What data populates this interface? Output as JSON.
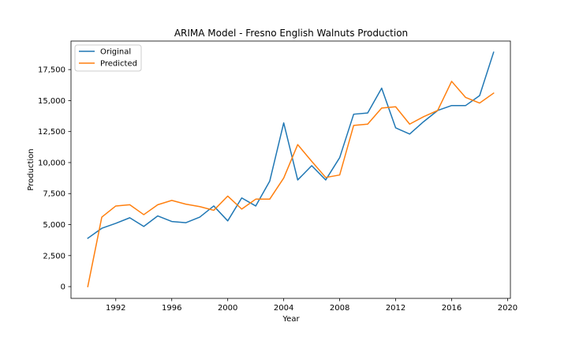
{
  "chart_data": {
    "type": "line",
    "title": "ARIMA Model - Fresno English Walnuts Production",
    "xlabel": "Year",
    "ylabel": "Production",
    "xlim": [
      1988.8,
      2020.2
    ],
    "ylim": [
      -950,
      19800
    ],
    "x_ticks": [
      1992,
      1996,
      2000,
      2004,
      2008,
      2012,
      2016,
      2020
    ],
    "x_tick_labels": [
      "1992",
      "1996",
      "2000",
      "2004",
      "2008",
      "2012",
      "2016",
      "2020"
    ],
    "y_ticks": [
      0,
      2500,
      5000,
      7500,
      10000,
      12500,
      15000,
      17500
    ],
    "y_tick_labels": [
      "0",
      "2,500",
      "5,000",
      "7,500",
      "10,000",
      "12,500",
      "15,000",
      "17,500"
    ],
    "grid": false,
    "legend_position": "top-left",
    "x": [
      1990,
      1991,
      1992,
      1993,
      1994,
      1995,
      1996,
      1997,
      1998,
      1999,
      2000,
      2001,
      2002,
      2003,
      2004,
      2005,
      2006,
      2007,
      2008,
      2009,
      2010,
      2011,
      2012,
      2013,
      2014,
      2015,
      2016,
      2017,
      2018,
      2019
    ],
    "series": [
      {
        "name": "Original",
        "color": "#1f77b4",
        "values": [
          3900,
          4700,
          5100,
          5550,
          4850,
          5700,
          5250,
          5150,
          5600,
          6500,
          5300,
          7150,
          6500,
          8500,
          13200,
          8600,
          9750,
          8600,
          10400,
          13900,
          14000,
          16000,
          12800,
          12300,
          13300,
          14200,
          14600,
          14600,
          15400,
          18900
        ]
      },
      {
        "name": "Predicted",
        "color": "#ff7f0e",
        "values": [
          0,
          5600,
          6500,
          6600,
          5800,
          6600,
          6950,
          6650,
          6450,
          6150,
          7300,
          6250,
          7050,
          7050,
          8750,
          11450,
          10100,
          8800,
          9000,
          13000,
          13100,
          14400,
          14500,
          13100,
          13700,
          14200,
          16550,
          15250,
          14800,
          15600
        ]
      }
    ]
  }
}
